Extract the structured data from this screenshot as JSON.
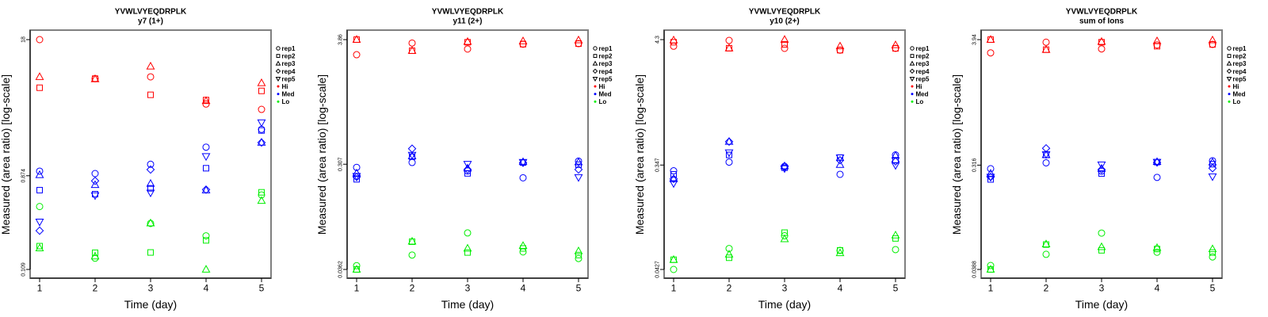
{
  "level_colors": {
    "Hi": "#FF0000",
    "Med": "#0000FF",
    "Lo": "#00EE00"
  },
  "chart_data": [
    {
      "type": "scatter",
      "title": "YVWLVYEQDRPLK",
      "subtitle": "y7 (1+)",
      "xlabel": "Time (day)",
      "ylabel": "Measured (area ratio) [log-scale]",
      "yscale": "log",
      "grid": false,
      "legend_position": "right",
      "xlim": [
        1,
        5
      ],
      "ylim": [
        0.109,
        18
      ],
      "x_ticks": [
        1,
        2,
        3,
        4,
        5
      ],
      "x_tick_labels": [
        "1",
        "2",
        "3",
        "4",
        "5"
      ],
      "y_ticks": [
        18,
        0.874,
        0.109
      ],
      "y_tick_labels": [
        "18",
        "0.874",
        "0.109"
      ],
      "legend": [
        {
          "label": "rep1",
          "symbol": "circle"
        },
        {
          "label": "rep2",
          "symbol": "square"
        },
        {
          "label": "rep3",
          "symbol": "triangle"
        },
        {
          "label": "rep4",
          "symbol": "diamond"
        },
        {
          "label": "rep5",
          "symbol": "triangle-down"
        },
        {
          "label": "Hi",
          "symbol": "dot",
          "color": "#FF0000"
        },
        {
          "label": "Med",
          "symbol": "dot",
          "color": "#0000FF"
        },
        {
          "label": "Lo",
          "symbol": "dot",
          "color": "#00EE00"
        }
      ],
      "series": [
        {
          "level": "Hi",
          "rep": "rep1",
          "x": [
            1,
            2,
            3,
            4,
            5
          ],
          "y": [
            18,
            7.56,
            7.87,
            4.3,
            3.82
          ]
        },
        {
          "level": "Hi",
          "rep": "rep2",
          "x": [
            1,
            2,
            3,
            4,
            5
          ],
          "y": [
            6.18,
            7.56,
            5.28,
            4.7,
            5.76
          ]
        },
        {
          "level": "Hi",
          "rep": "rep3",
          "x": [
            1,
            2,
            3,
            4,
            5
          ],
          "y": [
            7.87,
            7.5,
            9.94,
            4.62,
            6.87
          ]
        },
        {
          "level": "Med",
          "rep": "rep1",
          "x": [
            1,
            2,
            3,
            4,
            5
          ],
          "y": [
            0.968,
            0.918,
            1.128,
            1.65,
            2.45
          ]
        },
        {
          "level": "Med",
          "rep": "rep2",
          "x": [
            1,
            2,
            3,
            4,
            5
          ],
          "y": [
            0.635,
            0.581,
            0.661,
            1.033,
            2.39
          ]
        },
        {
          "level": "Med",
          "rep": "rep3",
          "x": [
            1,
            2,
            3,
            4,
            5
          ],
          "y": [
            0.891,
            0.714,
            0.734,
            0.635,
            1.83
          ]
        },
        {
          "level": "Med",
          "rep": "rep4",
          "x": [
            1,
            2,
            3,
            4,
            5
          ],
          "y": [
            0.258,
            0.78,
            1.003,
            0.642,
            1.83
          ]
        },
        {
          "level": "Med",
          "rep": "rep5",
          "x": [
            1,
            2,
            3,
            4,
            5
          ],
          "y": [
            0.314,
            0.564,
            0.599,
            1.346,
            2.85
          ]
        },
        {
          "level": "Lo",
          "rep": "rep1",
          "x": [
            1,
            2,
            3,
            4,
            5
          ],
          "y": [
            0.441,
            0.14,
            0.303,
            0.23,
            0.571
          ]
        },
        {
          "level": "Lo",
          "rep": "rep2",
          "x": [
            1,
            2,
            3,
            4,
            5
          ],
          "y": [
            0.183,
            0.158,
            0.159,
            0.208,
            0.605
          ]
        },
        {
          "level": "Lo",
          "rep": "rep3",
          "x": [
            1,
            2,
            3,
            4,
            5
          ],
          "y": [
            0.175,
            0.146,
            0.305,
            0.109,
            0.502
          ]
        }
      ]
    },
    {
      "type": "scatter",
      "title": "YVWLVYEQDRPLK",
      "subtitle": "y11 (2+)",
      "xlabel": "Time (day)",
      "ylabel": "Measured (area ratio) [log-scale]",
      "yscale": "log",
      "grid": false,
      "legend_position": "right",
      "xlim": [
        1,
        5
      ],
      "ylim": [
        0.0362,
        3.86
      ],
      "x_ticks": [
        1,
        2,
        3,
        4,
        5
      ],
      "x_tick_labels": [
        "1",
        "2",
        "3",
        "4",
        "5"
      ],
      "y_ticks": [
        3.86,
        0.307,
        0.0362
      ],
      "y_tick_labels": [
        "3.86",
        "0.307",
        "0.0362"
      ],
      "legend": [
        {
          "label": "rep1",
          "symbol": "circle"
        },
        {
          "label": "rep2",
          "symbol": "square"
        },
        {
          "label": "rep3",
          "symbol": "triangle"
        },
        {
          "label": "rep4",
          "symbol": "diamond"
        },
        {
          "label": "rep5",
          "symbol": "triangle-down"
        },
        {
          "label": "Hi",
          "symbol": "dot",
          "color": "#FF0000"
        },
        {
          "label": "Med",
          "symbol": "dot",
          "color": "#0000FF"
        },
        {
          "label": "Lo",
          "symbol": "dot",
          "color": "#00EE00"
        }
      ],
      "series": [
        {
          "level": "Hi",
          "rep": "rep1",
          "x": [
            1,
            2,
            3,
            4,
            5
          ],
          "y": [
            2.84,
            3.6,
            3.19,
            3.52,
            3.56
          ]
        },
        {
          "level": "Hi",
          "rep": "rep2",
          "x": [
            1,
            2,
            3,
            4,
            5
          ],
          "y": [
            3.86,
            3.08,
            3.66,
            3.52,
            3.56
          ]
        },
        {
          "level": "Hi",
          "rep": "rep3",
          "x": [
            1,
            2,
            3,
            4,
            5
          ],
          "y": [
            3.86,
            3.08,
            3.7,
            3.75,
            3.82
          ]
        },
        {
          "level": "Med",
          "rep": "rep1",
          "x": [
            1,
            2,
            3,
            4,
            5
          ],
          "y": [
            0.288,
            0.318,
            0.268,
            0.233,
            0.327
          ]
        },
        {
          "level": "Med",
          "rep": "rep2",
          "x": [
            1,
            2,
            3,
            4,
            5
          ],
          "y": [
            0.226,
            0.358,
            0.255,
            0.318,
            0.304
          ]
        },
        {
          "level": "Med",
          "rep": "rep3",
          "x": [
            1,
            2,
            3,
            4,
            5
          ],
          "y": [
            0.256,
            0.362,
            0.283,
            0.322,
            0.32
          ]
        },
        {
          "level": "Med",
          "rep": "rep4",
          "x": [
            1,
            2,
            3,
            4,
            5
          ],
          "y": [
            0.237,
            0.421,
            0.276,
            0.316,
            0.276
          ]
        },
        {
          "level": "Med",
          "rep": "rep5",
          "x": [
            1,
            2,
            3,
            4,
            5
          ],
          "y": [
            0.241,
            0.37,
            0.308,
            0.32,
            0.235
          ]
        },
        {
          "level": "Lo",
          "rep": "rep1",
          "x": [
            1,
            2,
            3,
            4,
            5
          ],
          "y": [
            0.0391,
            0.0485,
            0.076,
            0.0517,
            0.0452
          ]
        },
        {
          "level": "Lo",
          "rep": "rep2",
          "x": [
            1,
            2,
            3,
            4,
            5
          ],
          "y": [
            0.0362,
            0.0636,
            0.0511,
            0.0555,
            0.0485
          ]
        },
        {
          "level": "Lo",
          "rep": "rep3",
          "x": [
            1,
            2,
            3,
            4,
            5
          ],
          "y": [
            0.0362,
            0.064,
            0.0555,
            0.0586,
            0.0526
          ]
        }
      ]
    },
    {
      "type": "scatter",
      "title": "YVWLVYEQDRPLK",
      "subtitle": "y10 (2+)",
      "xlabel": "Time (day)",
      "ylabel": "Measured (area ratio) [log-scale]",
      "yscale": "log",
      "grid": false,
      "legend_position": "right",
      "xlim": [
        1,
        5
      ],
      "ylim": [
        0.0427,
        4.3
      ],
      "x_ticks": [
        1,
        2,
        3,
        4,
        5
      ],
      "x_tick_labels": [
        "1",
        "2",
        "3",
        "4",
        "5"
      ],
      "y_ticks": [
        4.3,
        0.347,
        0.0427
      ],
      "y_tick_labels": [
        "4.3",
        "0.347",
        "0.0427"
      ],
      "legend": [
        {
          "label": "rep1",
          "symbol": "circle"
        },
        {
          "label": "rep2",
          "symbol": "square"
        },
        {
          "label": "rep3",
          "symbol": "triangle"
        },
        {
          "label": "rep4",
          "symbol": "diamond"
        },
        {
          "label": "rep5",
          "symbol": "triangle-down"
        },
        {
          "label": "Hi",
          "symbol": "dot",
          "color": "#FF0000"
        },
        {
          "label": "Med",
          "symbol": "dot",
          "color": "#0000FF"
        },
        {
          "label": "Lo",
          "symbol": "dot",
          "color": "#00EE00"
        }
      ],
      "series": [
        {
          "level": "Hi",
          "rep": "rep1",
          "x": [
            1,
            2,
            3,
            4,
            5
          ],
          "y": [
            3.77,
            4.23,
            3.61,
            3.48,
            3.61
          ]
        },
        {
          "level": "Hi",
          "rep": "rep2",
          "x": [
            1,
            2,
            3,
            4,
            5
          ],
          "y": [
            4.08,
            3.62,
            3.91,
            3.48,
            3.61
          ]
        },
        {
          "level": "Hi",
          "rep": "rep3",
          "x": [
            1,
            2,
            3,
            4,
            5
          ],
          "y": [
            4.25,
            3.62,
            4.3,
            3.77,
            3.86
          ]
        },
        {
          "level": "Med",
          "rep": "rep1",
          "x": [
            1,
            2,
            3,
            4,
            5
          ],
          "y": [
            0.309,
            0.368,
            0.338,
            0.288,
            0.425
          ]
        },
        {
          "level": "Med",
          "rep": "rep2",
          "x": [
            1,
            2,
            3,
            4,
            5
          ],
          "y": [
            0.288,
            0.425,
            0.329,
            0.403,
            0.382
          ]
        },
        {
          "level": "Med",
          "rep": "rep3",
          "x": [
            1,
            2,
            3,
            4,
            5
          ],
          "y": [
            0.263,
            0.555,
            0.34,
            0.349,
            0.42
          ]
        },
        {
          "level": "Med",
          "rep": "rep4",
          "x": [
            1,
            2,
            3,
            4,
            5
          ],
          "y": [
            0.263,
            0.555,
            0.336,
            0.382,
            0.373
          ]
        },
        {
          "level": "Med",
          "rep": "rep5",
          "x": [
            1,
            2,
            3,
            4,
            5
          ],
          "y": [
            0.24,
            0.446,
            0.324,
            0.403,
            0.345
          ]
        },
        {
          "level": "Lo",
          "rep": "rep1",
          "x": [
            1,
            2,
            3,
            4,
            5
          ],
          "y": [
            0.0427,
            0.065,
            0.0839,
            0.0626,
            0.0636
          ]
        },
        {
          "level": "Lo",
          "rep": "rep2",
          "x": [
            1,
            2,
            3,
            4,
            5
          ],
          "y": [
            0.0519,
            0.054,
            0.0894,
            0.0626,
            0.0796
          ]
        },
        {
          "level": "Lo",
          "rep": "rep3",
          "x": [
            1,
            2,
            3,
            4,
            5
          ],
          "y": [
            0.0519,
            0.0578,
            0.0787,
            0.0594,
            0.0848
          ]
        }
      ]
    },
    {
      "type": "scatter",
      "title": "YVWLVYEQDRPLK",
      "subtitle": "sum of Ions",
      "xlabel": "Time (day)",
      "ylabel": "Measured (area ratio) [log-scale]",
      "yscale": "log",
      "grid": false,
      "legend_position": "right",
      "xlim": [
        1,
        5
      ],
      "ylim": [
        0.0388,
        3.94
      ],
      "x_ticks": [
        1,
        2,
        3,
        4,
        5
      ],
      "x_tick_labels": [
        "1",
        "2",
        "3",
        "4",
        "5"
      ],
      "y_ticks": [
        3.94,
        0.316,
        0.0388
      ],
      "y_tick_labels": [
        "3.94",
        "0.316",
        "0.0388"
      ],
      "legend": [
        {
          "label": "rep1",
          "symbol": "circle"
        },
        {
          "label": "rep2",
          "symbol": "square"
        },
        {
          "label": "rep3",
          "symbol": "triangle"
        },
        {
          "label": "rep4",
          "symbol": "diamond"
        },
        {
          "label": "rep5",
          "symbol": "triangle-down"
        },
        {
          "label": "Hi",
          "symbol": "dot",
          "color": "#FF0000"
        },
        {
          "label": "Med",
          "symbol": "dot",
          "color": "#0000FF"
        },
        {
          "label": "Lo",
          "symbol": "dot",
          "color": "#00EE00"
        }
      ],
      "series": [
        {
          "level": "Hi",
          "rep": "rep1",
          "x": [
            1,
            2,
            3,
            4,
            5
          ],
          "y": [
            3.02,
            3.74,
            3.27,
            3.54,
            3.58
          ]
        },
        {
          "level": "Hi",
          "rep": "rep2",
          "x": [
            1,
            2,
            3,
            4,
            5
          ],
          "y": [
            3.94,
            3.22,
            3.74,
            3.45,
            3.58
          ]
        },
        {
          "level": "Hi",
          "rep": "rep3",
          "x": [
            1,
            2,
            3,
            4,
            5
          ],
          "y": [
            3.94,
            3.22,
            3.78,
            3.83,
            3.9
          ]
        },
        {
          "level": "Med",
          "rep": "rep1",
          "x": [
            1,
            2,
            3,
            4,
            5
          ],
          "y": [
            0.294,
            0.331,
            0.28,
            0.247,
            0.345
          ]
        },
        {
          "level": "Med",
          "rep": "rep2",
          "x": [
            1,
            2,
            3,
            4,
            5
          ],
          "y": [
            0.237,
            0.388,
            0.267,
            0.336,
            0.322
          ]
        },
        {
          "level": "Med",
          "rep": "rep3",
          "x": [
            1,
            2,
            3,
            4,
            5
          ],
          "y": [
            0.267,
            0.388,
            0.295,
            0.338,
            0.335
          ]
        },
        {
          "level": "Med",
          "rep": "rep4",
          "x": [
            1,
            2,
            3,
            4,
            5
          ],
          "y": [
            0.249,
            0.443,
            0.289,
            0.334,
            0.297
          ]
        },
        {
          "level": "Med",
          "rep": "rep5",
          "x": [
            1,
            2,
            3,
            4,
            5
          ],
          "y": [
            0.249,
            0.392,
            0.319,
            0.336,
            0.251
          ]
        },
        {
          "level": "Lo",
          "rep": "rep1",
          "x": [
            1,
            2,
            3,
            4,
            5
          ],
          "y": [
            0.042,
            0.0526,
            0.0806,
            0.0549,
            0.0499
          ]
        },
        {
          "level": "Lo",
          "rep": "rep2",
          "x": [
            1,
            2,
            3,
            4,
            5
          ],
          "y": [
            0.0388,
            0.064,
            0.057,
            0.0585,
            0.0545
          ]
        },
        {
          "level": "Lo",
          "rep": "rep3",
          "x": [
            1,
            2,
            3,
            4,
            5
          ],
          "y": [
            0.0388,
            0.0645,
            0.061,
            0.06,
            0.0585
          ]
        }
      ]
    }
  ]
}
